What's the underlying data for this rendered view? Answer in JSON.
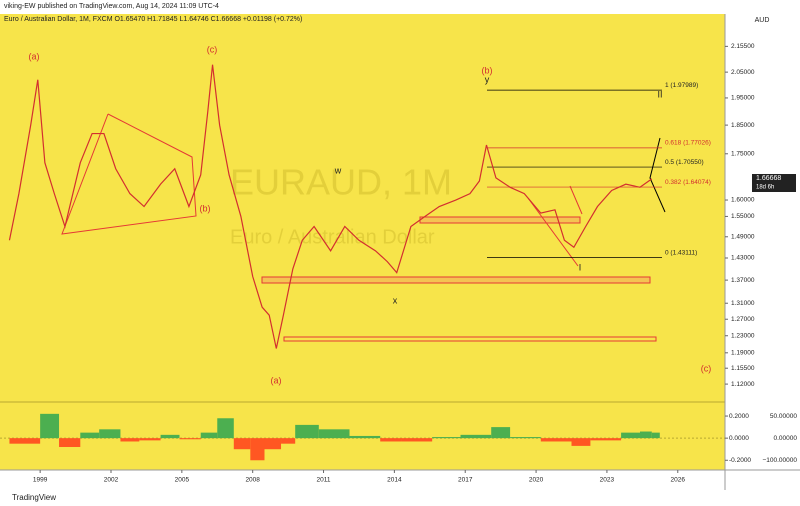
{
  "header": {
    "line1": "viking-EW published on TradingView.com, Aug 14, 2024 11:09 UTC-4",
    "line2": "Euro / Australian Dollar, 1M, FXCM  O1.65470  H1.71845  L1.64746  C1.66668  +0.01198 (+0.72%)",
    "currency": "AUD",
    "footer": "TradingView"
  },
  "watermark": {
    "symbol": "EURAUD, 1M",
    "name": "Euro / Australian Dollar"
  },
  "annotations": [
    "(a)",
    "(c)",
    "(b)",
    "(a)",
    "(b)",
    "y",
    "w",
    "x",
    "I",
    "II",
    "(c)"
  ],
  "last_price": {
    "label": "1.66668",
    "countdown": "18d 6h"
  },
  "chart_data": [
    {
      "type": "line",
      "log": true,
      "color": "#d32f2f",
      "xlim": [
        1997.3,
        2028.0
      ],
      "ylim": [
        1.086,
        2.29
      ],
      "xticks": [
        1999,
        2002,
        2005,
        2008,
        2011,
        2014,
        2017,
        2020,
        2023,
        2026
      ],
      "yticks": [
        {
          "value": 2.155,
          "label": "2.15500"
        },
        {
          "value": 2.05,
          "label": "2.05000"
        },
        {
          "value": 1.95,
          "label": "1.95000"
        },
        {
          "value": 1.85,
          "label": "1.85000"
        },
        {
          "value": 1.75,
          "label": "1.75000"
        },
        {
          "value": 1.6,
          "label": "1.60000"
        },
        {
          "value": 1.55,
          "label": "1.55000"
        },
        {
          "value": 1.49,
          "label": "1.49000"
        },
        {
          "value": 1.43,
          "label": "1.43000"
        },
        {
          "value": 1.37,
          "label": "1.37000"
        },
        {
          "value": 1.31,
          "label": "1.31000"
        },
        {
          "value": 1.27,
          "label": "1.27000"
        },
        {
          "value": 1.23,
          "label": "1.23000"
        },
        {
          "value": 1.19,
          "label": "1.19000"
        },
        {
          "value": 1.155,
          "label": "1.15500"
        },
        {
          "value": 1.12,
          "label": "1.12000"
        }
      ],
      "x": [
        1997.7,
        1998.1,
        1998.6,
        1998.9,
        1999.2,
        1999.6,
        2000.05,
        2000.7,
        2001.2,
        2001.7,
        2002.2,
        2002.8,
        2003.4,
        2004.1,
        2004.7,
        2005.3,
        2005.8,
        2006.1,
        2006.3,
        2006.6,
        2007.0,
        2007.5,
        2008.0,
        2008.4,
        2008.7,
        2009.0,
        2009.3,
        2009.7,
        2010.1,
        2010.6,
        2011.3,
        2011.9,
        2012.5,
        2013.2,
        2013.7,
        2014.1,
        2014.7,
        2015.3,
        2015.9,
        2016.6,
        2017.2,
        2017.6,
        2017.9,
        2018.3,
        2018.9,
        2019.5,
        2020.2,
        2020.8,
        2021.2,
        2021.6,
        2022.1,
        2022.6,
        2023.2,
        2023.8,
        2024.4,
        2024.9
      ],
      "values": [
        1.48,
        1.62,
        1.85,
        2.02,
        1.72,
        1.62,
        1.52,
        1.72,
        1.82,
        1.82,
        1.7,
        1.62,
        1.58,
        1.65,
        1.7,
        1.58,
        1.68,
        1.9,
        2.08,
        1.85,
        1.68,
        1.55,
        1.38,
        1.3,
        1.28,
        1.2,
        1.28,
        1.4,
        1.48,
        1.52,
        1.45,
        1.52,
        1.48,
        1.45,
        1.42,
        1.39,
        1.52,
        1.55,
        1.58,
        1.6,
        1.62,
        1.66,
        1.78,
        1.67,
        1.64,
        1.62,
        1.56,
        1.57,
        1.48,
        1.46,
        1.52,
        1.58,
        1.63,
        1.65,
        1.64,
        1.667
      ],
      "fibs": [
        {
          "value": 1.97989,
          "label": "1 (1.97989)"
        },
        {
          "value": 1.77026,
          "label": "0.618 (1.77026)"
        },
        {
          "value": 1.7055,
          "label": "0.5 (1.70550)"
        },
        {
          "value": 1.64074,
          "label": "0.382 (1.64074)"
        },
        {
          "value": 1.43111,
          "label": "0 (1.43111)"
        }
      ]
    },
    {
      "type": "bar",
      "xlim": [
        1997.3,
        2028.0
      ],
      "ylim": [
        -0.27,
        0.3
      ],
      "pos_color": "#4caf50",
      "neg_color": "#ff5722",
      "yticks": [
        {
          "value": 0.2,
          "label": "0.2000"
        },
        {
          "value": 0,
          "label": "0.0000"
        },
        {
          "value": -0.2,
          "label": "-0.2000"
        }
      ],
      "y2ticks": [
        "50.00000",
        "0.00000",
        "−100.00000"
      ],
      "x": [
        1997.7,
        1999.0,
        1999.8,
        2000.7,
        2001.5,
        2002.4,
        2003.2,
        2004.1,
        2004.9,
        2005.8,
        2006.5,
        2007.2,
        2007.9,
        2008.5,
        2009.2,
        2009.8,
        2010.8,
        2012.1,
        2013.4,
        2014.3,
        2015.6,
        2016.8,
        2018.1,
        2018.9,
        2020.2,
        2021.5,
        2022.3,
        2023.6,
        2024.4,
        2024.9
      ],
      "values": [
        -0.05,
        0.22,
        -0.08,
        0.05,
        0.08,
        -0.03,
        -0.02,
        0.03,
        -0.01,
        0.05,
        0.18,
        -0.1,
        -0.2,
        -0.1,
        -0.05,
        0.12,
        0.08,
        0.02,
        -0.03,
        -0.03,
        0.01,
        0.03,
        0.1,
        0.01,
        -0.03,
        -0.07,
        -0.02,
        0.05,
        0.06,
        0.05
      ]
    }
  ]
}
